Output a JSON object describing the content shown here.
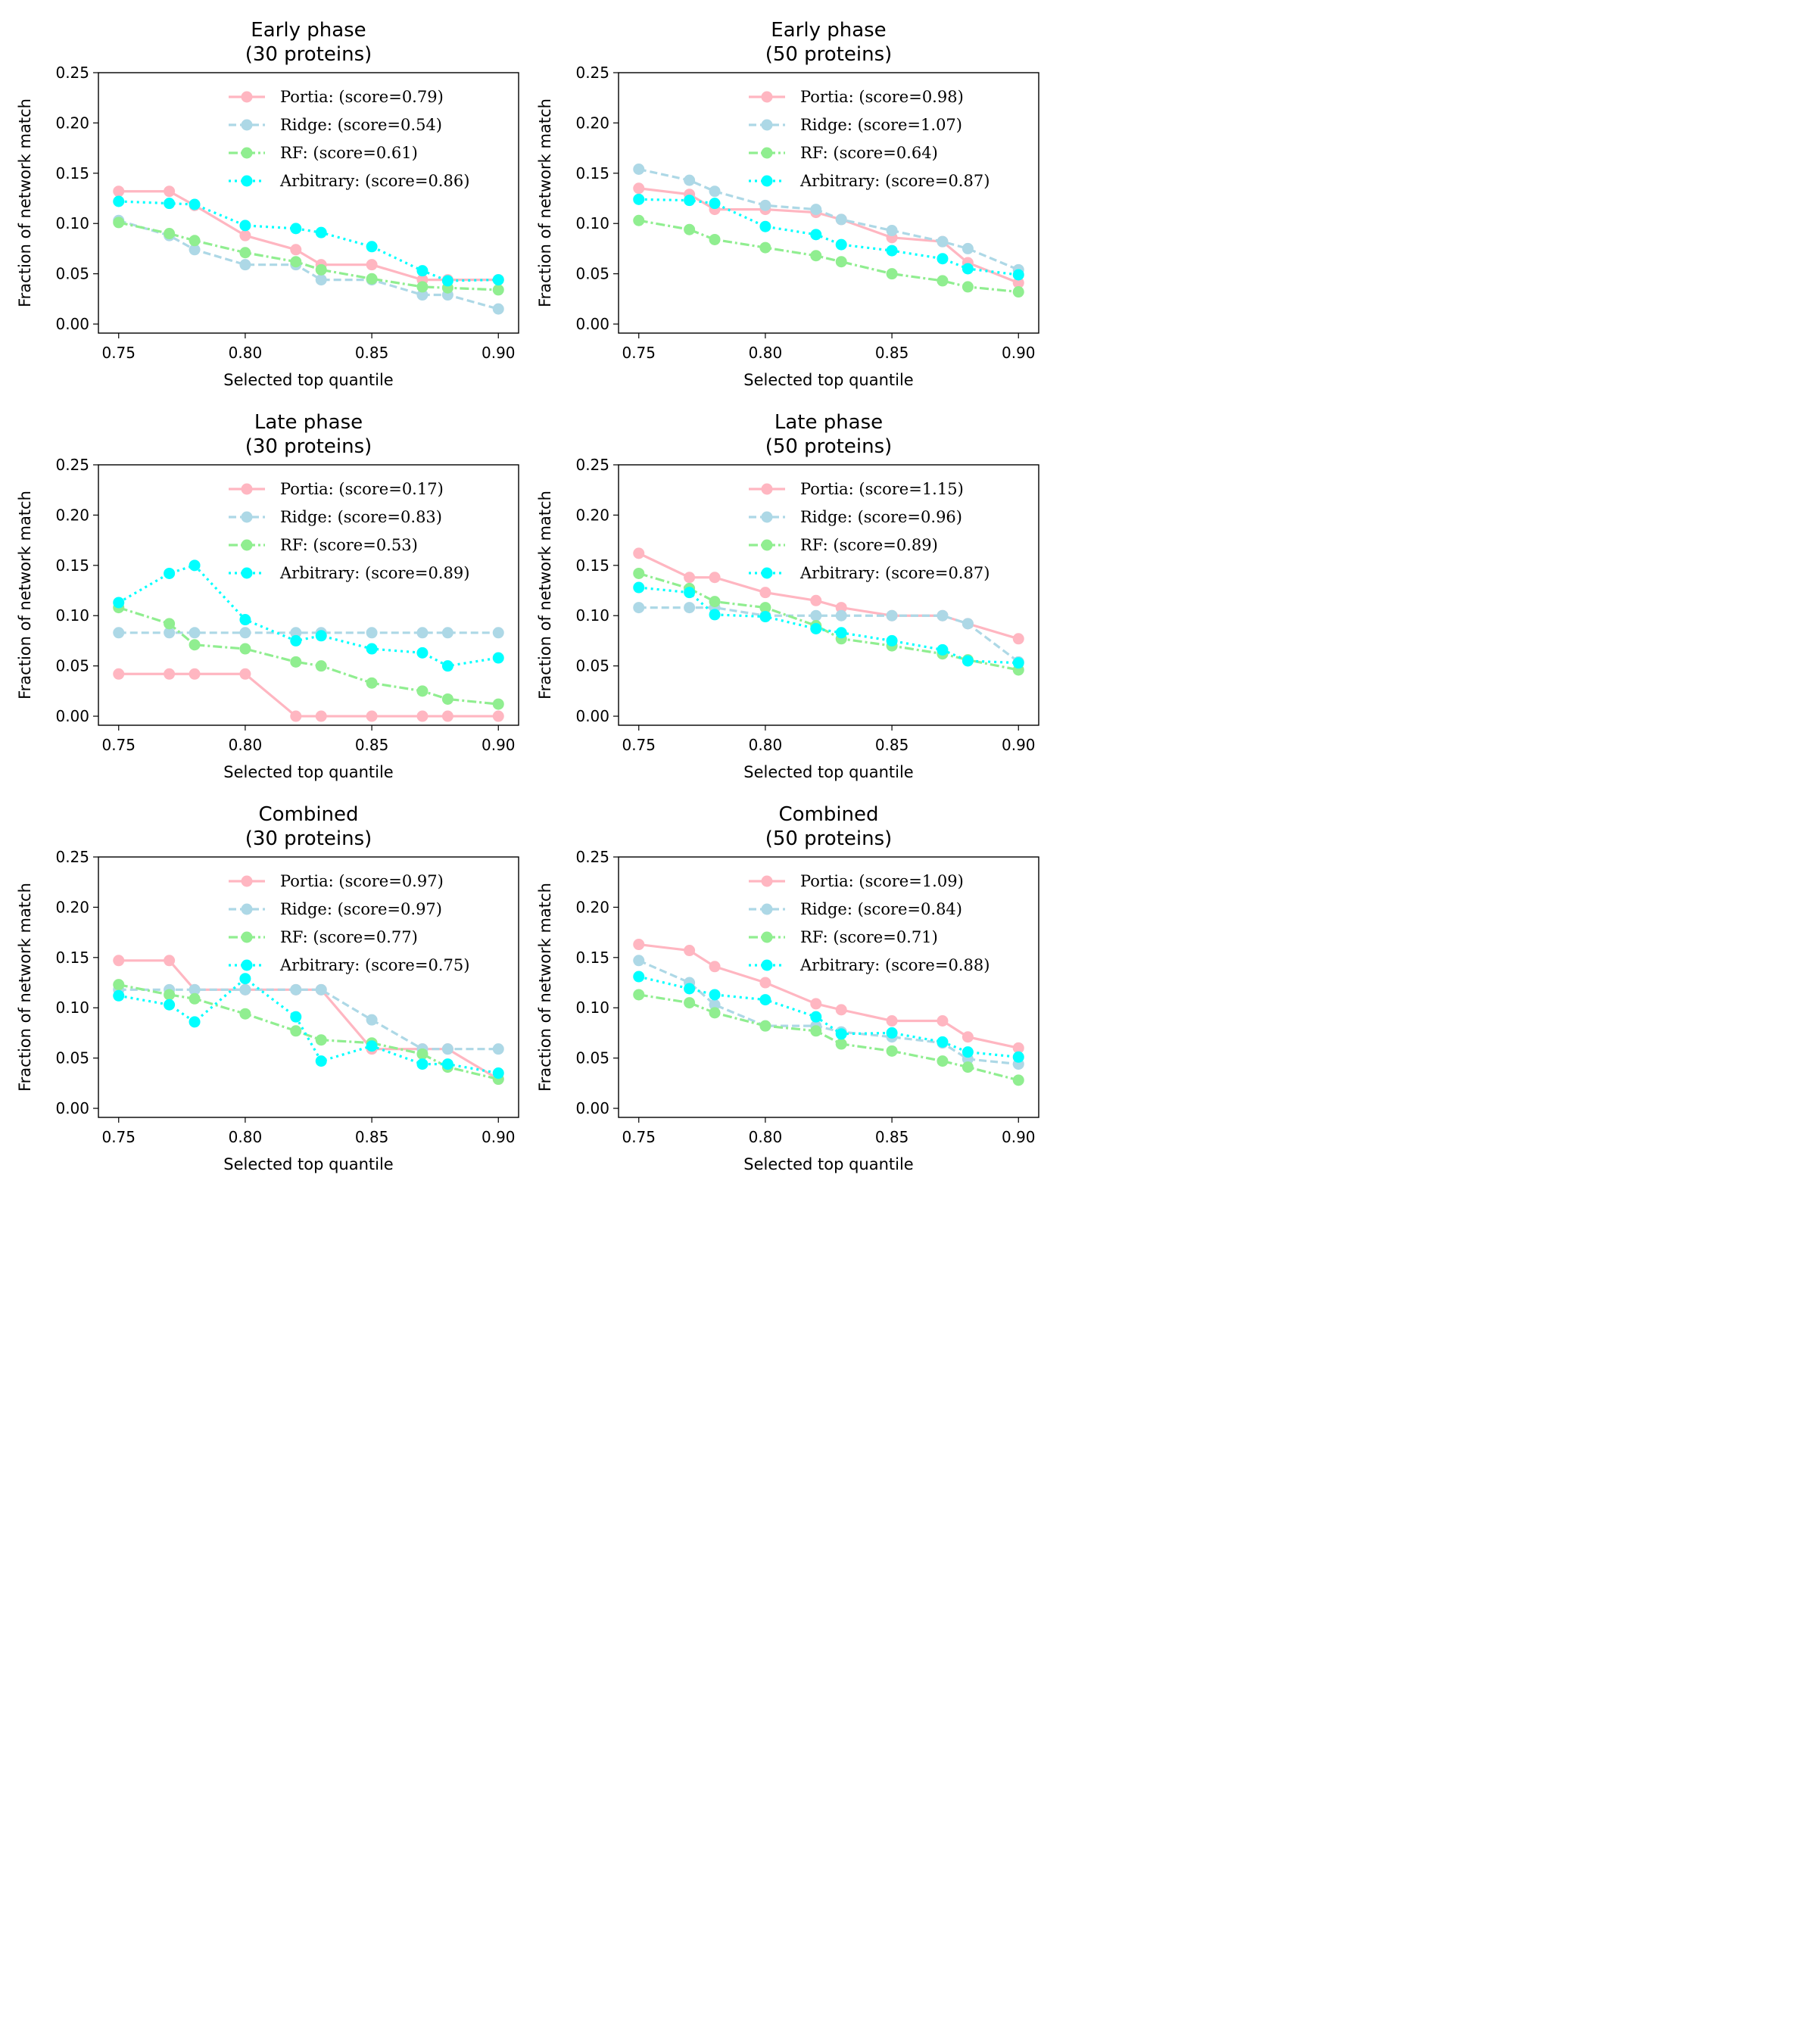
{
  "chart_data": [
    {
      "type": "line",
      "title": "Early phase\n(30 proteins)",
      "xlabel": "Selected top quantile",
      "ylabel": "Fraction of network match",
      "xlim": [
        0.742,
        0.908
      ],
      "ylim": [
        -0.009,
        0.25
      ],
      "xticks": [
        "0.75",
        "0.80",
        "0.85",
        "0.90"
      ],
      "yticks": [
        "0.00",
        "0.05",
        "0.10",
        "0.15",
        "0.20",
        "0.25"
      ],
      "legend_position": "top-right",
      "x": [
        0.75,
        0.77,
        0.78,
        0.8,
        0.82,
        0.83,
        0.85,
        0.87,
        0.88,
        0.9
      ],
      "series": [
        {
          "name": "Portia: (score=0.79)",
          "color": "#ffb6c1",
          "dash": "solid",
          "values": [
            0.132,
            0.132,
            0.118,
            0.088,
            0.074,
            0.059,
            0.059,
            0.044,
            0.044,
            0.044
          ]
        },
        {
          "name": "Ridge: (score=0.54)",
          "color": "#add8e6",
          "dash": "dashed",
          "values": [
            0.103,
            0.088,
            0.074,
            0.059,
            0.059,
            0.044,
            0.044,
            0.029,
            0.029,
            0.015
          ]
        },
        {
          "name": "RF: (score=0.61)",
          "color": "#90ee90",
          "dash": "dashdot",
          "values": [
            0.101,
            0.09,
            0.083,
            0.071,
            0.062,
            0.054,
            0.045,
            0.037,
            0.036,
            0.034
          ]
        },
        {
          "name": "Arbitrary: (score=0.86)",
          "color": "#00ffff",
          "dash": "dotted",
          "values": [
            0.122,
            0.12,
            0.119,
            0.098,
            0.095,
            0.091,
            0.077,
            0.053,
            0.043,
            0.044
          ]
        }
      ]
    },
    {
      "type": "line",
      "title": "Early phase\n(50 proteins)",
      "xlabel": "Selected top quantile",
      "ylabel": "Fraction of network match",
      "xlim": [
        0.742,
        0.908
      ],
      "ylim": [
        -0.009,
        0.25
      ],
      "xticks": [
        "0.75",
        "0.80",
        "0.85",
        "0.90"
      ],
      "yticks": [
        "0.00",
        "0.05",
        "0.10",
        "0.15",
        "0.20",
        "0.25"
      ],
      "legend_position": "top-right",
      "x": [
        0.75,
        0.77,
        0.78,
        0.8,
        0.82,
        0.83,
        0.85,
        0.87,
        0.88,
        0.9
      ],
      "series": [
        {
          "name": "Portia: (score=0.98)",
          "color": "#ffb6c1",
          "dash": "solid",
          "values": [
            0.135,
            0.129,
            0.114,
            0.114,
            0.111,
            0.104,
            0.086,
            0.082,
            0.061,
            0.041
          ]
        },
        {
          "name": "Ridge: (score=1.07)",
          "color": "#add8e6",
          "dash": "dashed",
          "values": [
            0.154,
            0.143,
            0.132,
            0.118,
            0.114,
            0.104,
            0.093,
            0.082,
            0.075,
            0.054
          ]
        },
        {
          "name": "RF: (score=0.64)",
          "color": "#90ee90",
          "dash": "dashdot",
          "values": [
            0.103,
            0.094,
            0.084,
            0.076,
            0.068,
            0.062,
            0.05,
            0.043,
            0.037,
            0.032
          ]
        },
        {
          "name": "Arbitrary: (score=0.87)",
          "color": "#00ffff",
          "dash": "dotted",
          "values": [
            0.124,
            0.123,
            0.12,
            0.097,
            0.089,
            0.079,
            0.073,
            0.065,
            0.055,
            0.049
          ]
        }
      ]
    },
    {
      "type": "line",
      "title": "Late phase\n(30 proteins)",
      "xlabel": "Selected top quantile",
      "ylabel": "Fraction of network match",
      "xlim": [
        0.742,
        0.908
      ],
      "ylim": [
        -0.009,
        0.25
      ],
      "xticks": [
        "0.75",
        "0.80",
        "0.85",
        "0.90"
      ],
      "yticks": [
        "0.00",
        "0.05",
        "0.10",
        "0.15",
        "0.20",
        "0.25"
      ],
      "legend_position": "top-right",
      "x": [
        0.75,
        0.77,
        0.78,
        0.8,
        0.82,
        0.83,
        0.85,
        0.87,
        0.88,
        0.9
      ],
      "series": [
        {
          "name": "Portia: (score=0.17)",
          "color": "#ffb6c1",
          "dash": "solid",
          "values": [
            0.042,
            0.042,
            0.042,
            0.042,
            0.0,
            0.0,
            0.0,
            0.0,
            0.0,
            0.0
          ]
        },
        {
          "name": "Ridge: (score=0.83)",
          "color": "#add8e6",
          "dash": "dashed",
          "values": [
            0.083,
            0.083,
            0.083,
            0.083,
            0.083,
            0.083,
            0.083,
            0.083,
            0.083,
            0.083
          ]
        },
        {
          "name": "RF: (score=0.53)",
          "color": "#90ee90",
          "dash": "dashdot",
          "values": [
            0.108,
            0.092,
            0.071,
            0.067,
            0.054,
            0.05,
            0.033,
            0.025,
            0.017,
            0.012
          ]
        },
        {
          "name": "Arbitrary: (score=0.89)",
          "color": "#00ffff",
          "dash": "dotted",
          "values": [
            0.113,
            0.142,
            0.15,
            0.096,
            0.075,
            0.08,
            0.067,
            0.063,
            0.05,
            0.058
          ]
        }
      ]
    },
    {
      "type": "line",
      "title": "Late phase\n(50 proteins)",
      "xlabel": "Selected top quantile",
      "ylabel": "Fraction of network match",
      "xlim": [
        0.742,
        0.908
      ],
      "ylim": [
        -0.009,
        0.25
      ],
      "xticks": [
        "0.75",
        "0.80",
        "0.85",
        "0.90"
      ],
      "yticks": [
        "0.00",
        "0.05",
        "0.10",
        "0.15",
        "0.20",
        "0.25"
      ],
      "legend_position": "top-right",
      "x": [
        0.75,
        0.77,
        0.78,
        0.8,
        0.82,
        0.83,
        0.85,
        0.87,
        0.88,
        0.9
      ],
      "series": [
        {
          "name": "Portia: (score=1.15)",
          "color": "#ffb6c1",
          "dash": "solid",
          "values": [
            0.162,
            0.138,
            0.138,
            0.123,
            0.115,
            0.108,
            0.1,
            0.1,
            0.092,
            0.077
          ]
        },
        {
          "name": "Ridge: (score=0.96)",
          "color": "#add8e6",
          "dash": "dashed",
          "values": [
            0.108,
            0.108,
            0.108,
            0.1,
            0.1,
            0.1,
            0.1,
            0.1,
            0.092,
            0.054
          ]
        },
        {
          "name": "RF: (score=0.89)",
          "color": "#90ee90",
          "dash": "dashdot",
          "values": [
            0.142,
            0.127,
            0.114,
            0.108,
            0.09,
            0.077,
            0.07,
            0.062,
            0.056,
            0.046
          ]
        },
        {
          "name": "Arbitrary: (score=0.87)",
          "color": "#00ffff",
          "dash": "dotted",
          "values": [
            0.128,
            0.123,
            0.101,
            0.099,
            0.087,
            0.083,
            0.075,
            0.066,
            0.055,
            0.053
          ]
        }
      ]
    },
    {
      "type": "line",
      "title": "Combined\n(30 proteins)",
      "xlabel": "Selected top quantile",
      "ylabel": "Fraction of network match",
      "xlim": [
        0.742,
        0.908
      ],
      "ylim": [
        -0.009,
        0.25
      ],
      "xticks": [
        "0.75",
        "0.80",
        "0.85",
        "0.90"
      ],
      "yticks": [
        "0.00",
        "0.05",
        "0.10",
        "0.15",
        "0.20",
        "0.25"
      ],
      "legend_position": "top-right",
      "x": [
        0.75,
        0.77,
        0.78,
        0.8,
        0.82,
        0.83,
        0.85,
        0.87,
        0.88,
        0.9
      ],
      "series": [
        {
          "name": "Portia: (score=0.97)",
          "color": "#ffb6c1",
          "dash": "solid",
          "values": [
            0.147,
            0.147,
            0.118,
            0.118,
            0.118,
            0.118,
            0.059,
            0.059,
            0.059,
            0.029
          ]
        },
        {
          "name": "Ridge: (score=0.97)",
          "color": "#add8e6",
          "dash": "dashed",
          "values": [
            0.118,
            0.118,
            0.118,
            0.118,
            0.118,
            0.118,
            0.088,
            0.059,
            0.059,
            0.059
          ]
        },
        {
          "name": "RF: (score=0.77)",
          "color": "#90ee90",
          "dash": "dashdot",
          "values": [
            0.123,
            0.113,
            0.109,
            0.094,
            0.077,
            0.068,
            0.065,
            0.054,
            0.041,
            0.029
          ]
        },
        {
          "name": "Arbitrary: (score=0.75)",
          "color": "#00ffff",
          "dash": "dotted",
          "values": [
            0.112,
            0.103,
            0.086,
            0.129,
            0.091,
            0.047,
            0.062,
            0.044,
            0.044,
            0.035
          ]
        }
      ]
    },
    {
      "type": "line",
      "title": "Combined\n(50 proteins)",
      "xlabel": "Selected top quantile",
      "ylabel": "Fraction of network match",
      "xlim": [
        0.742,
        0.908
      ],
      "ylim": [
        -0.009,
        0.25
      ],
      "xticks": [
        "0.75",
        "0.80",
        "0.85",
        "0.90"
      ],
      "yticks": [
        "0.00",
        "0.05",
        "0.10",
        "0.15",
        "0.20",
        "0.25"
      ],
      "legend_position": "top-right",
      "x": [
        0.75,
        0.77,
        0.78,
        0.8,
        0.82,
        0.83,
        0.85,
        0.87,
        0.88,
        0.9
      ],
      "series": [
        {
          "name": "Portia: (score=1.09)",
          "color": "#ffb6c1",
          "dash": "solid",
          "values": [
            0.163,
            0.157,
            0.141,
            0.125,
            0.104,
            0.098,
            0.087,
            0.087,
            0.071,
            0.06
          ]
        },
        {
          "name": "Ridge: (score=0.84)",
          "color": "#add8e6",
          "dash": "dashed",
          "values": [
            0.147,
            0.125,
            0.103,
            0.082,
            0.082,
            0.076,
            0.071,
            0.065,
            0.049,
            0.044
          ]
        },
        {
          "name": "RF: (score=0.71)",
          "color": "#90ee90",
          "dash": "dashdot",
          "values": [
            0.113,
            0.105,
            0.095,
            0.082,
            0.077,
            0.064,
            0.057,
            0.047,
            0.041,
            0.028
          ]
        },
        {
          "name": "Arbitrary: (score=0.88)",
          "color": "#00ffff",
          "dash": "dotted",
          "values": [
            0.131,
            0.119,
            0.113,
            0.108,
            0.091,
            0.074,
            0.075,
            0.066,
            0.056,
            0.051
          ]
        }
      ]
    }
  ]
}
